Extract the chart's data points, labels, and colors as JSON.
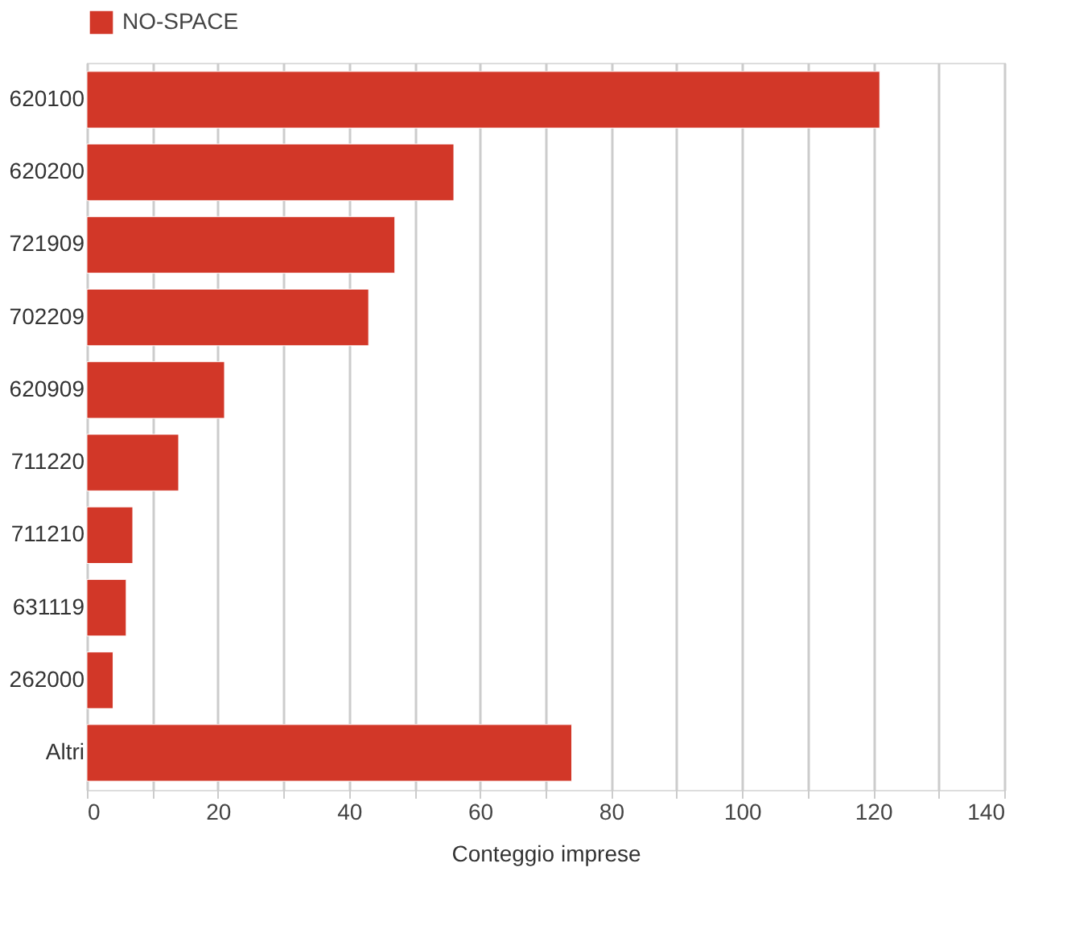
{
  "chart_data": {
    "type": "bar",
    "orientation": "horizontal",
    "xlabel": "Conteggio imprese",
    "categories": [
      "620100",
      "620200",
      "721909",
      "702209",
      "620909",
      "711220",
      "711210",
      "631119",
      "262000",
      "Altri"
    ],
    "series": [
      {
        "name": "NO-SPACE",
        "color": "#d23728",
        "values": [
          121,
          56,
          47,
          43,
          21,
          14,
          7,
          6,
          4,
          74
        ]
      }
    ],
    "xlim": [
      0,
      140
    ],
    "xticks": [
      0,
      {
        "value": 10,
        "label": null
      },
      20,
      {
        "value": 30,
        "label": null
      },
      40,
      {
        "value": 50,
        "label": null
      },
      60,
      {
        "value": 70,
        "label": null
      },
      80,
      {
        "value": 90,
        "label": null
      },
      100,
      {
        "value": 110,
        "label": null
      },
      120,
      {
        "value": 130,
        "label": null
      },
      140
    ],
    "grid": "x",
    "legend": "top left"
  }
}
